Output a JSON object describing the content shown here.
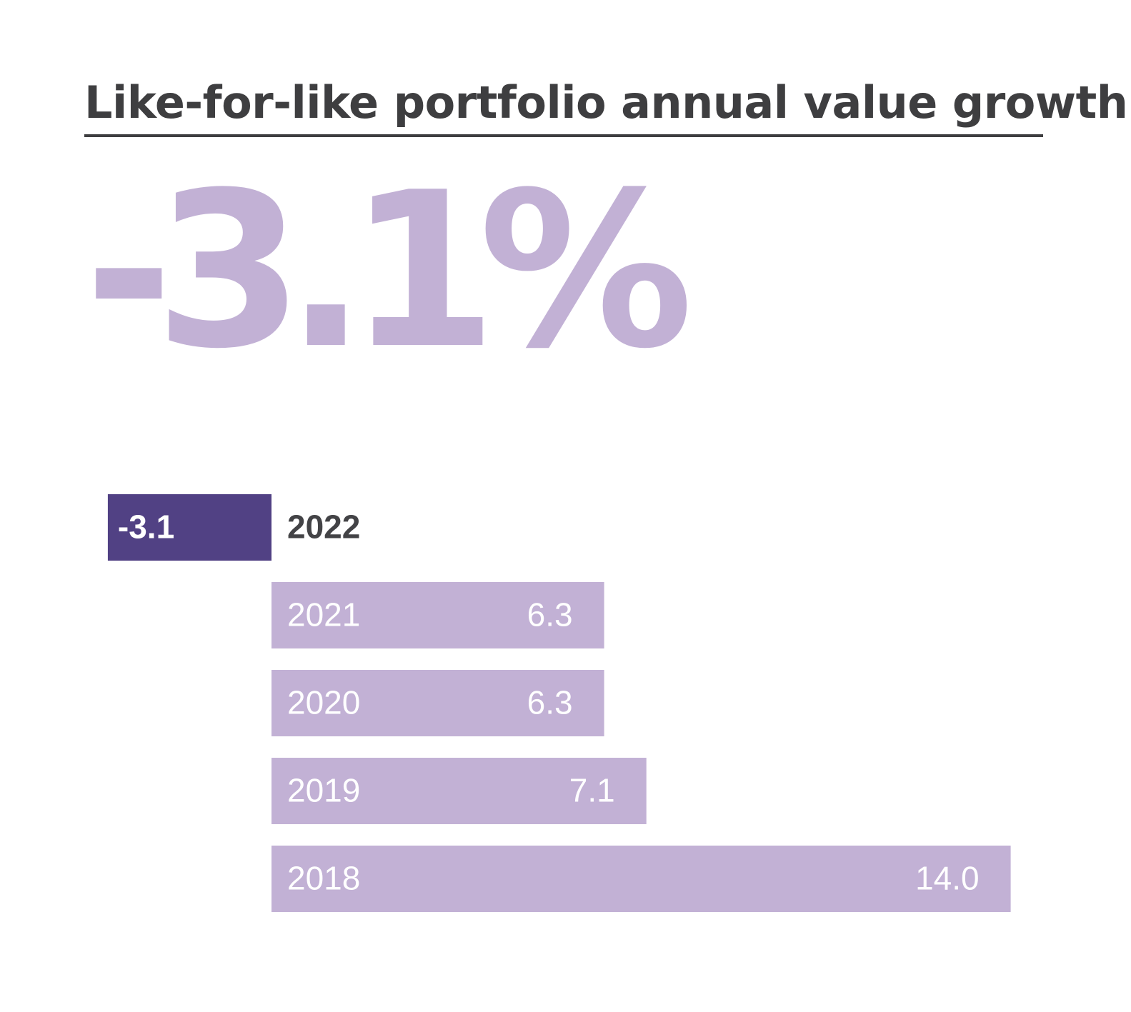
{
  "title": "Like-for-like portfolio annual value growth",
  "headline": "-3.1%",
  "colors": {
    "highlight_bar": "#514184",
    "bar": "#c2b1d5",
    "title": "#3e3e40",
    "label_on_bar": "#ffffff",
    "label_dark": "#434346"
  },
  "chart_data": {
    "type": "bar",
    "orientation": "horizontal",
    "title": "Like-for-like portfolio annual value growth",
    "unit": "%",
    "categories": [
      "2022",
      "2021",
      "2020",
      "2019",
      "2018"
    ],
    "values": [
      -3.1,
      6.3,
      6.3,
      7.1,
      14.0
    ],
    "value_labels": [
      "-3.1",
      "6.3",
      "6.3",
      "7.1",
      "14.0"
    ],
    "highlight_category": "2022",
    "xlim": [
      -3.1,
      14.0
    ]
  }
}
